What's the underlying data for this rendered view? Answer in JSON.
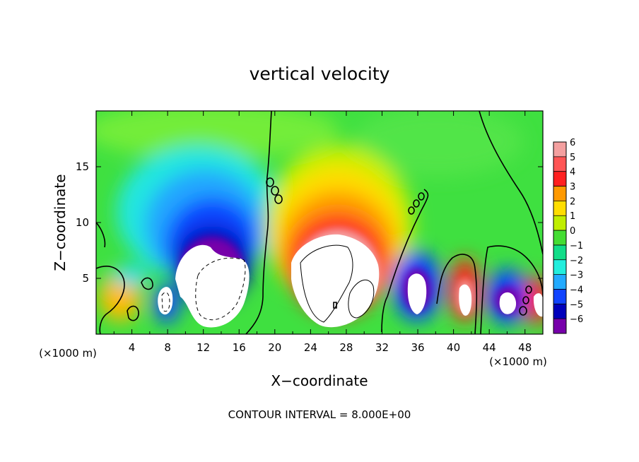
{
  "chart_data": {
    "type": "heatmap",
    "title": "vertical velocity",
    "xlabel": "X−coordinate",
    "ylabel": "Z−coordinate",
    "x_unit_label": "(×1000 m)",
    "xlim": [
      0,
      50
    ],
    "ylim": [
      0,
      20
    ],
    "x_ticks": [
      4,
      8,
      12,
      16,
      20,
      24,
      28,
      32,
      36,
      40,
      44,
      48
    ],
    "y_ticks": [
      5,
      10,
      15
    ],
    "x_tick_labels": [
      "4",
      "8",
      "12",
      "16",
      "20",
      "24",
      "28",
      "32",
      "36",
      "40",
      "44",
      "48"
    ],
    "y_tick_labels": [
      "5",
      "10",
      "15"
    ],
    "colorbar": {
      "range": [
        -6,
        6
      ],
      "tick_labels": [
        "6",
        "5",
        "4",
        "3",
        "2",
        "1",
        "0",
        "−1",
        "−2",
        "−3",
        "−4",
        "−5",
        "−6"
      ],
      "colors": [
        "#f4a0a0",
        "#ff5555",
        "#ff2020",
        "#ff9900",
        "#ffdd00",
        "#c0ee00",
        "#44dd33",
        "#11dd88",
        "#22eedd",
        "#22aaff",
        "#1144ff",
        "#0000bb",
        "#7700aa"
      ]
    },
    "features": [
      {
        "kind": "updraft",
        "x": 27,
        "z": 5,
        "peak": 6
      },
      {
        "kind": "downdraft",
        "x": 12.5,
        "z": 6,
        "peak": -6
      },
      {
        "kind": "downdraft",
        "x": 36,
        "z": 4.5,
        "peak": -6
      },
      {
        "kind": "updraft",
        "x": 41.5,
        "z": 3.5,
        "peak": 6
      },
      {
        "kind": "downdraft",
        "x": 46.5,
        "z": 3,
        "peak": -6
      },
      {
        "kind": "downdraft",
        "x": 8,
        "z": 3,
        "peak": -6
      },
      {
        "kind": "updraft",
        "x": 49.5,
        "z": 3,
        "peak": 6
      }
    ],
    "contour_interval_text": "CONTOUR INTERVAL = 8.000E+00"
  }
}
